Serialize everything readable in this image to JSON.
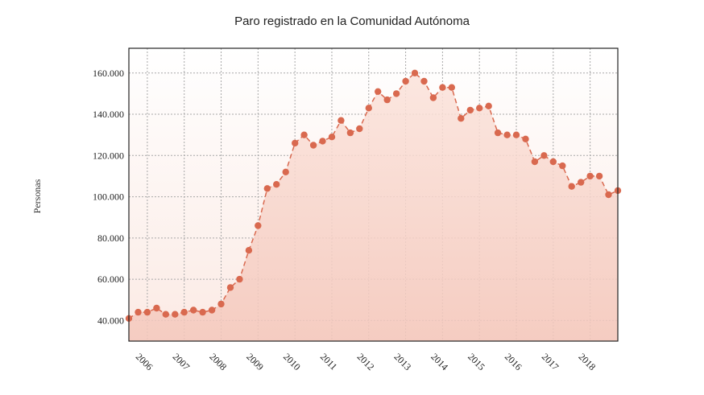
{
  "chart_data": {
    "type": "area",
    "title": "Paro registrado en la Comunidad Autónoma",
    "ylabel": "Personas",
    "xlabel": "",
    "ylim": [
      30000,
      172000
    ],
    "xlim": [
      2005.5,
      2018.75
    ],
    "ytick_labels": [
      "40.000",
      "60.000",
      "80.000",
      "100.000",
      "120.000",
      "140.000",
      "160.000"
    ],
    "ytick_values": [
      40000,
      60000,
      80000,
      100000,
      120000,
      140000,
      160000
    ],
    "xtick_labels": [
      "2006",
      "2007",
      "2008",
      "2009",
      "2010",
      "2011",
      "2012",
      "2013",
      "2014",
      "2015",
      "2016",
      "2017",
      "2018"
    ],
    "grid": true,
    "series": [
      {
        "color": "#d9694f",
        "x": [
          2005.5,
          2005.75,
          2006.0,
          2006.25,
          2006.5,
          2006.75,
          2007.0,
          2007.25,
          2007.5,
          2007.75,
          2008.0,
          2008.25,
          2008.5,
          2008.75,
          2009.0,
          2009.25,
          2009.5,
          2009.75,
          2010.0,
          2010.25,
          2010.5,
          2010.75,
          2011.0,
          2011.25,
          2011.5,
          2011.75,
          2012.0,
          2012.25,
          2012.5,
          2012.75,
          2013.0,
          2013.25,
          2013.5,
          2013.75,
          2014.0,
          2014.25,
          2014.5,
          2014.75,
          2015.0,
          2015.25,
          2015.5,
          2015.75,
          2016.0,
          2016.25,
          2016.5,
          2016.75,
          2017.0,
          2017.25,
          2017.5,
          2017.75,
          2018.0,
          2018.25,
          2018.5,
          2018.75
        ],
        "values": [
          41000,
          44000,
          44000,
          46000,
          43000,
          43000,
          44000,
          45000,
          44000,
          45000,
          48000,
          56000,
          60000,
          74000,
          86000,
          104000,
          106000,
          112000,
          126000,
          130000,
          125000,
          127000,
          129000,
          137000,
          131000,
          133000,
          143000,
          151000,
          147000,
          150000,
          156000,
          160000,
          156000,
          148000,
          153000,
          153000,
          138000,
          142000,
          143000,
          144000,
          131000,
          130000,
          130000,
          128000,
          117000,
          120000,
          117000,
          115000,
          105000,
          107000,
          110000,
          110000,
          101000,
          103000
        ]
      }
    ]
  }
}
